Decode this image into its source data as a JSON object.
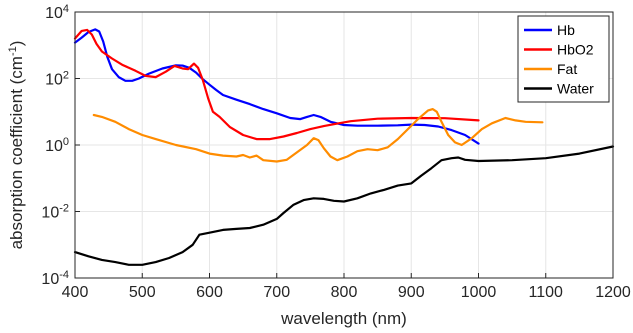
{
  "chart_data": {
    "type": "line",
    "xlabel": "wavelength (nm)",
    "ylabel_main": "absorption coefficient (cm",
    "ylabel_sup": "-1",
    "ylabel_close": ")",
    "xlim": [
      400,
      1200
    ],
    "ylim": [
      0.0001,
      10000
    ],
    "yscale": "log",
    "grid": true,
    "legend_position": "top-right",
    "x_ticks": [
      400,
      500,
      600,
      700,
      800,
      900,
      1000,
      1100,
      1200
    ],
    "x_tick_labels": [
      "400",
      "500",
      "600",
      "700",
      "800",
      "900",
      "1000",
      "1100",
      "1200"
    ],
    "y_ticks": [
      {
        "value": 10000,
        "base": "10",
        "exp": "4"
      },
      {
        "value": 100,
        "base": "10",
        "exp": "2"
      },
      {
        "value": 1,
        "base": "10",
        "exp": "0"
      },
      {
        "value": 0.01,
        "base": "10",
        "exp": "-2"
      },
      {
        "value": 0.0001,
        "base": "10",
        "exp": "-4"
      }
    ],
    "series": [
      {
        "name": "Hb",
        "color": "#0000ff",
        "points": [
          [
            400,
            1200
          ],
          [
            410,
            1700
          ],
          [
            420,
            2500
          ],
          [
            430,
            3000
          ],
          [
            436,
            2600
          ],
          [
            442,
            1300
          ],
          [
            448,
            450
          ],
          [
            455,
            190
          ],
          [
            465,
            110
          ],
          [
            475,
            85
          ],
          [
            485,
            85
          ],
          [
            495,
            100
          ],
          [
            510,
            140
          ],
          [
            530,
            200
          ],
          [
            550,
            250
          ],
          [
            560,
            245
          ],
          [
            570,
            210
          ],
          [
            580,
            150
          ],
          [
            590,
            95
          ],
          [
            600,
            65
          ],
          [
            610,
            45
          ],
          [
            620,
            32
          ],
          [
            640,
            23
          ],
          [
            660,
            17
          ],
          [
            680,
            12
          ],
          [
            700,
            9
          ],
          [
            720,
            6.5
          ],
          [
            735,
            6
          ],
          [
            745,
            7
          ],
          [
            755,
            8
          ],
          [
            765,
            7
          ],
          [
            780,
            5
          ],
          [
            800,
            4
          ],
          [
            820,
            3.8
          ],
          [
            850,
            3.8
          ],
          [
            880,
            3.9
          ],
          [
            900,
            4.1
          ],
          [
            920,
            4
          ],
          [
            940,
            3.6
          ],
          [
            960,
            2.8
          ],
          [
            980,
            2
          ],
          [
            1000,
            1.1
          ]
        ]
      },
      {
        "name": "HbO2",
        "color": "#ff0000",
        "points": [
          [
            400,
            1600
          ],
          [
            410,
            2700
          ],
          [
            418,
            2900
          ],
          [
            425,
            2100
          ],
          [
            432,
            1100
          ],
          [
            440,
            650
          ],
          [
            455,
            400
          ],
          [
            470,
            260
          ],
          [
            490,
            170
          ],
          [
            505,
            120
          ],
          [
            520,
            110
          ],
          [
            535,
            160
          ],
          [
            548,
            240
          ],
          [
            560,
            200
          ],
          [
            568,
            190
          ],
          [
            577,
            280
          ],
          [
            583,
            210
          ],
          [
            590,
            90
          ],
          [
            598,
            25
          ],
          [
            605,
            10
          ],
          [
            615,
            7
          ],
          [
            630,
            3.5
          ],
          [
            650,
            2
          ],
          [
            670,
            1.5
          ],
          [
            690,
            1.5
          ],
          [
            710,
            1.8
          ],
          [
            730,
            2.3
          ],
          [
            750,
            3
          ],
          [
            770,
            3.7
          ],
          [
            790,
            4.4
          ],
          [
            810,
            5.2
          ],
          [
            850,
            6.2
          ],
          [
            900,
            6.5
          ],
          [
            950,
            6.4
          ],
          [
            1000,
            5.5
          ]
        ]
      },
      {
        "name": "Fat",
        "color": "#ff8c00",
        "points": [
          [
            428,
            8
          ],
          [
            440,
            7
          ],
          [
            460,
            5
          ],
          [
            480,
            3
          ],
          [
            500,
            2
          ],
          [
            520,
            1.5
          ],
          [
            550,
            1
          ],
          [
            580,
            0.75
          ],
          [
            600,
            0.55
          ],
          [
            620,
            0.48
          ],
          [
            640,
            0.45
          ],
          [
            650,
            0.5
          ],
          [
            660,
            0.42
          ],
          [
            670,
            0.48
          ],
          [
            680,
            0.35
          ],
          [
            700,
            0.32
          ],
          [
            715,
            0.36
          ],
          [
            730,
            0.6
          ],
          [
            745,
            1
          ],
          [
            755,
            1.6
          ],
          [
            762,
            1.4
          ],
          [
            770,
            0.8
          ],
          [
            780,
            0.45
          ],
          [
            790,
            0.35
          ],
          [
            805,
            0.45
          ],
          [
            820,
            0.65
          ],
          [
            835,
            0.75
          ],
          [
            850,
            0.7
          ],
          [
            865,
            0.85
          ],
          [
            880,
            1.5
          ],
          [
            895,
            3
          ],
          [
            910,
            6
          ],
          [
            925,
            11
          ],
          [
            932,
            12
          ],
          [
            938,
            10
          ],
          [
            945,
            5
          ],
          [
            955,
            2
          ],
          [
            965,
            1.2
          ],
          [
            975,
            1
          ],
          [
            990,
            1.6
          ],
          [
            1005,
            3
          ],
          [
            1020,
            4.5
          ],
          [
            1040,
            6.5
          ],
          [
            1055,
            5.5
          ],
          [
            1070,
            5
          ],
          [
            1095,
            4.8
          ]
        ]
      },
      {
        "name": "Water",
        "color": "#000000",
        "points": [
          [
            400,
            0.0006
          ],
          [
            420,
            0.00045
          ],
          [
            440,
            0.00035
          ],
          [
            460,
            0.0003
          ],
          [
            480,
            0.00025
          ],
          [
            500,
            0.00025
          ],
          [
            520,
            0.0003
          ],
          [
            540,
            0.0004
          ],
          [
            560,
            0.0006
          ],
          [
            575,
            0.001
          ],
          [
            585,
            0.002
          ],
          [
            600,
            0.0023
          ],
          [
            620,
            0.0028
          ],
          [
            640,
            0.003
          ],
          [
            660,
            0.0032
          ],
          [
            680,
            0.004
          ],
          [
            700,
            0.006
          ],
          [
            710,
            0.009
          ],
          [
            725,
            0.016
          ],
          [
            740,
            0.022
          ],
          [
            755,
            0.025
          ],
          [
            770,
            0.024
          ],
          [
            785,
            0.021
          ],
          [
            800,
            0.02
          ],
          [
            820,
            0.025
          ],
          [
            840,
            0.035
          ],
          [
            860,
            0.045
          ],
          [
            880,
            0.06
          ],
          [
            900,
            0.07
          ],
          [
            915,
            0.12
          ],
          [
            930,
            0.2
          ],
          [
            945,
            0.35
          ],
          [
            960,
            0.4
          ],
          [
            970,
            0.42
          ],
          [
            980,
            0.36
          ],
          [
            1000,
            0.33
          ],
          [
            1050,
            0.35
          ],
          [
            1100,
            0.4
          ],
          [
            1150,
            0.55
          ],
          [
            1200,
            0.9
          ]
        ]
      }
    ]
  }
}
